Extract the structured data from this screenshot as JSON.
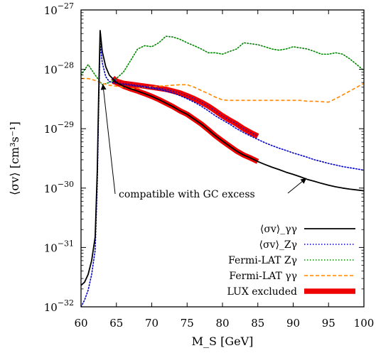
{
  "chart_data": {
    "type": "line",
    "title": "",
    "xlabel": "M_S [GeV]",
    "ylabel": "⟨σv⟩ [cm³s⁻¹]",
    "xlim": [
      60,
      100
    ],
    "ylim": [
      1e-32,
      1e-27
    ],
    "yscale": "log",
    "grid": false,
    "legend_position": "bottom-right",
    "x_ticks": [
      60,
      65,
      70,
      75,
      80,
      85,
      90,
      95,
      100
    ],
    "y_ticks": [
      {
        "value": 1e-32,
        "mant": "10",
        "exp": "−32"
      },
      {
        "value": 1e-31,
        "mant": "10",
        "exp": "−31"
      },
      {
        "value": 1e-30,
        "mant": "10",
        "exp": "−30"
      },
      {
        "value": 1e-29,
        "mant": "10",
        "exp": "−29"
      },
      {
        "value": 1e-28,
        "mant": "10",
        "exp": "−28"
      },
      {
        "value": 1e-27,
        "mant": "10",
        "exp": "−27"
      }
    ],
    "annotation": {
      "text": "compatible with GC excess",
      "arrow_targets": [
        [
          63.1,
          5.5e-29
        ],
        [
          91.8,
          1.45e-30
        ]
      ]
    },
    "series": [
      {
        "name": "⟨σv⟩_γγ",
        "color": "#000000",
        "style": "solid",
        "x": [
          60,
          60.5,
          61,
          61.5,
          62,
          62.3,
          62.5,
          62.7,
          63,
          63.5,
          64,
          65,
          66,
          67,
          68,
          69,
          70,
          71,
          72,
          73,
          74,
          75,
          76,
          77,
          78,
          79,
          80,
          81,
          82,
          83,
          84,
          85,
          86,
          87,
          88,
          89,
          90,
          91,
          92,
          93,
          94,
          95,
          96,
          97,
          98,
          99,
          100
        ],
        "values": [
          2.3e-32,
          2.6e-32,
          3.5e-32,
          6e-32,
          1.5e-31,
          2e-30,
          4e-29,
          4.5e-28,
          2e-28,
          1.1e-28,
          8e-29,
          6e-29,
          5.2e-29,
          4.7e-29,
          4.3e-29,
          3.9e-29,
          3.5e-29,
          3.1e-29,
          2.7e-29,
          2.35e-29,
          2e-29,
          1.75e-29,
          1.45e-29,
          1.2e-29,
          9.6e-30,
          7.6e-30,
          6.2e-30,
          5.1e-30,
          4.2e-30,
          3.6e-30,
          3.2e-30,
          2.8e-30,
          2.5e-30,
          2.25e-30,
          2.05e-30,
          1.85e-30,
          1.7e-30,
          1.55e-30,
          1.4e-30,
          1.3e-30,
          1.2e-30,
          1.12e-30,
          1.05e-30,
          1e-30,
          9.6e-31,
          9.3e-31,
          9e-31
        ]
      },
      {
        "name": "⟨σv⟩_Zγ",
        "color": "#0000cc",
        "style": "dotted",
        "x": [
          60,
          60.5,
          61,
          61.5,
          62,
          62.3,
          62.5,
          62.7,
          63,
          63.5,
          64,
          65,
          66,
          67,
          68,
          69,
          70,
          71,
          72,
          73,
          74,
          75,
          76,
          77,
          78,
          79,
          80,
          81,
          82,
          83,
          84,
          85,
          86,
          87,
          88,
          89,
          90,
          91,
          92,
          93,
          94,
          95,
          96,
          97,
          98,
          99,
          100
        ],
        "values": [
          1e-32,
          1.3e-32,
          1.9e-32,
          3.5e-32,
          9e-32,
          1.2e-30,
          2.5e-29,
          2.8e-28,
          1.3e-28,
          7.5e-29,
          6.2e-29,
          5.8e-29,
          5.6e-29,
          5.4e-29,
          5.2e-29,
          5e-29,
          4.8e-29,
          4.6e-29,
          4.3e-29,
          4e-29,
          3.6e-29,
          3.2e-29,
          2.8e-29,
          2.4e-29,
          2e-29,
          1.65e-29,
          1.4e-29,
          1.2e-29,
          1e-29,
          8.6e-30,
          7.5e-30,
          6.6e-30,
          5.8e-30,
          5.2e-30,
          4.7e-30,
          4.3e-30,
          3.9e-30,
          3.6e-30,
          3.3e-30,
          3e-30,
          2.8e-30,
          2.6e-30,
          2.45e-30,
          2.3e-30,
          2.2e-30,
          2.1e-30,
          2e-30
        ]
      },
      {
        "name": "Fermi-LAT Zγ",
        "color": "#008800",
        "style": "dotted",
        "x": [
          60,
          61,
          62,
          63,
          64,
          65,
          66,
          67,
          68,
          69,
          70,
          71,
          72,
          73,
          74,
          75,
          76,
          77,
          78,
          79,
          80,
          81,
          82,
          83,
          84,
          85,
          86,
          87,
          88,
          89,
          90,
          91,
          92,
          93,
          94,
          95,
          96,
          97,
          98,
          99,
          100
        ],
        "values": [
          8e-29,
          1.2e-28,
          8e-29,
          5.5e-29,
          6e-29,
          7e-29,
          9e-29,
          1.4e-28,
          2.2e-28,
          2.5e-28,
          2.4e-28,
          2.8e-28,
          3.6e-28,
          3.5e-28,
          3.2e-28,
          2.8e-28,
          2.5e-28,
          2.2e-28,
          1.9e-28,
          1.9e-28,
          1.8e-28,
          2e-28,
          2.2e-28,
          2.8e-28,
          2.7e-28,
          2.6e-28,
          2.4e-28,
          2.2e-28,
          2.1e-28,
          2.2e-28,
          2.4e-28,
          2.3e-28,
          2.2e-28,
          2e-28,
          1.8e-28,
          1.8e-28,
          1.9e-28,
          1.8e-28,
          1.5e-28,
          1.2e-28,
          9.5e-29
        ]
      },
      {
        "name": "Fermi-LAT γγ",
        "color": "#ff8800",
        "style": "dashed",
        "x": [
          60,
          61,
          62,
          63,
          64,
          65,
          66,
          67,
          68,
          69,
          70,
          71,
          72,
          73,
          74,
          75,
          76,
          77,
          78,
          79,
          80,
          81,
          82,
          83,
          84,
          85,
          86,
          87,
          88,
          89,
          90,
          91,
          92,
          93,
          94,
          95,
          96,
          97,
          98,
          99,
          100
        ],
        "values": [
          7e-29,
          7e-29,
          6.5e-29,
          5.8e-29,
          5.4e-29,
          5.2e-29,
          5e-29,
          4.8e-29,
          4.8e-29,
          5e-29,
          5.1e-29,
          5.2e-29,
          5.3e-29,
          5.4e-29,
          5.5e-29,
          5.5e-29,
          5e-29,
          4.4e-29,
          3.9e-29,
          3.4e-29,
          3.05e-29,
          3e-29,
          3e-29,
          3e-29,
          3e-29,
          3e-29,
          3e-29,
          3e-29,
          3e-29,
          3e-29,
          3e-29,
          3e-29,
          2.9e-29,
          2.9e-29,
          2.85e-29,
          2.8e-29,
          3.2e-29,
          3.7e-29,
          4.3e-29,
          5e-29,
          5.8e-29
        ]
      },
      {
        "name": "LUX excluded",
        "color": "#ee0000",
        "style": "thick",
        "segments": [
          {
            "x": [
              64.5,
              65,
              66,
              67,
              68,
              69,
              70,
              71,
              72,
              73,
              74,
              75,
              76,
              77,
              78,
              79,
              80,
              81,
              82,
              83,
              84,
              85
            ],
            "values": [
              6.3e-29,
              6e-29,
              5.2e-29,
              4.7e-29,
              4.3e-29,
              3.9e-29,
              3.5e-29,
              3.1e-29,
              2.7e-29,
              2.35e-29,
              2e-29,
              1.75e-29,
              1.45e-29,
              1.2e-29,
              9.6e-30,
              7.6e-30,
              6.2e-30,
              5.1e-30,
              4.2e-30,
              3.6e-30,
              3.2e-30,
              2.8e-30
            ]
          },
          {
            "x": [
              64.5,
              65,
              66,
              67,
              68,
              69,
              70,
              71,
              72,
              73,
              74,
              75,
              76,
              77,
              78,
              79,
              80,
              81,
              82,
              83,
              84,
              85
            ],
            "values": [
              7.2e-29,
              6.3e-29,
              5.8e-29,
              5.6e-29,
              5.4e-29,
              5.2e-29,
              5e-29,
              4.8e-29,
              4.6e-29,
              4.3e-29,
              4e-29,
              3.6e-29,
              3.2e-29,
              2.8e-29,
              2.4e-29,
              2e-29,
              1.65e-29,
              1.4e-29,
              1.2e-29,
              1e-29,
              8.6e-30,
              7.5e-30
            ]
          }
        ]
      }
    ]
  }
}
